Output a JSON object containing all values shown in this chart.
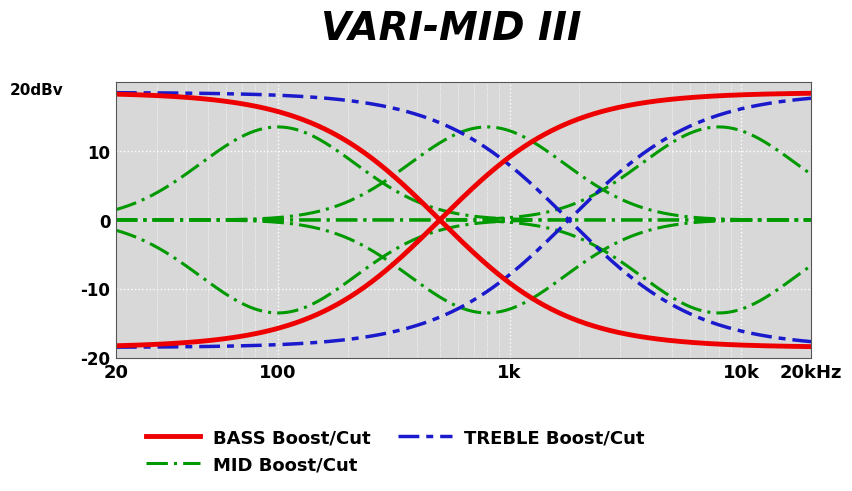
{
  "title": "VARI-MID III",
  "ylabel_label": "20dBv",
  "xlabel_ticks": [
    20,
    100,
    1000,
    10000,
    20000
  ],
  "xlabel_labels": [
    "20",
    "100",
    "1k",
    "10k",
    "20kHz"
  ],
  "ylim": [
    -20,
    20
  ],
  "yticks": [
    -20,
    -10,
    0,
    10,
    20
  ],
  "ytick_labels": [
    "-20",
    "-10",
    "0",
    "10",
    ""
  ],
  "background_color": "#d8d8d8",
  "grid_color": "#ffffff",
  "bass_color": "#ee0000",
  "mid_color": "#009900",
  "treble_color": "#1a1acc",
  "bass_f0": 500,
  "bass_gain": 18.5,
  "bass_slope": 1.8,
  "treble_f0": 1800,
  "treble_gain": 18.5,
  "treble_slope": 1.8,
  "mid_centers": [
    100,
    800,
    8000
  ],
  "mid_gain": 13.5,
  "mid_Q": 1.5,
  "legend_entries": [
    "BASS Boost/Cut",
    "MID Boost/Cut",
    "TREBLE Boost/Cut"
  ]
}
